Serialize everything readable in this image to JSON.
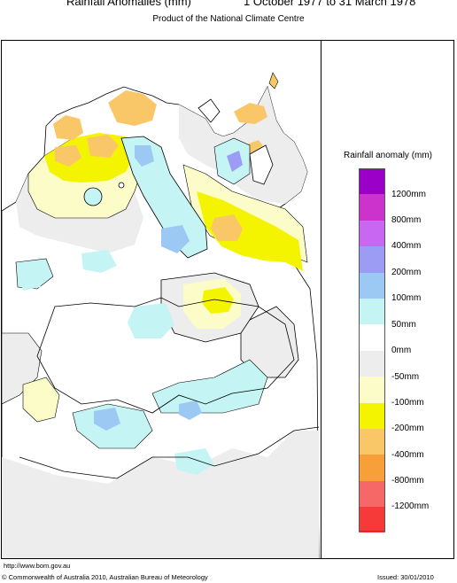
{
  "header": {
    "title": "Rainfall Anomalies (mm)",
    "period": "1 October 1977 to 31 March 1978",
    "subtitle": "Product of the National Climate Centre"
  },
  "legend": {
    "title": "Rainfall anomaly (mm)",
    "bins": [
      {
        "color": "#9a00c8",
        "label": ""
      },
      {
        "color": "#cc33cc",
        "label": "1200mm"
      },
      {
        "color": "#c767f2",
        "label": "800mm"
      },
      {
        "color": "#9c9cf4",
        "label": "400mm"
      },
      {
        "color": "#9cc8f4",
        "label": "200mm"
      },
      {
        "color": "#c4f4f4",
        "label": "100mm"
      },
      {
        "color": "#ffffff",
        "label": "50mm"
      },
      {
        "color": "#ededed",
        "label": "0mm"
      },
      {
        "color": "#fcfcc8",
        "label": "-50mm"
      },
      {
        "color": "#f4f400",
        "label": "-100mm"
      },
      {
        "color": "#f9c768",
        "label": "-200mm"
      },
      {
        "color": "#f99f3a",
        "label": "-400mm"
      },
      {
        "color": "#f66868",
        "label": "-800mm"
      },
      {
        "color": "#f63a3a",
        "label": "-1200mm"
      }
    ]
  },
  "footer": {
    "url": "http://www.bom.gov.au",
    "copyright": "© Commonwealth of Australia 2010, Australian Bureau of Meteorology",
    "issued": "Issued: 30/01/2010"
  }
}
